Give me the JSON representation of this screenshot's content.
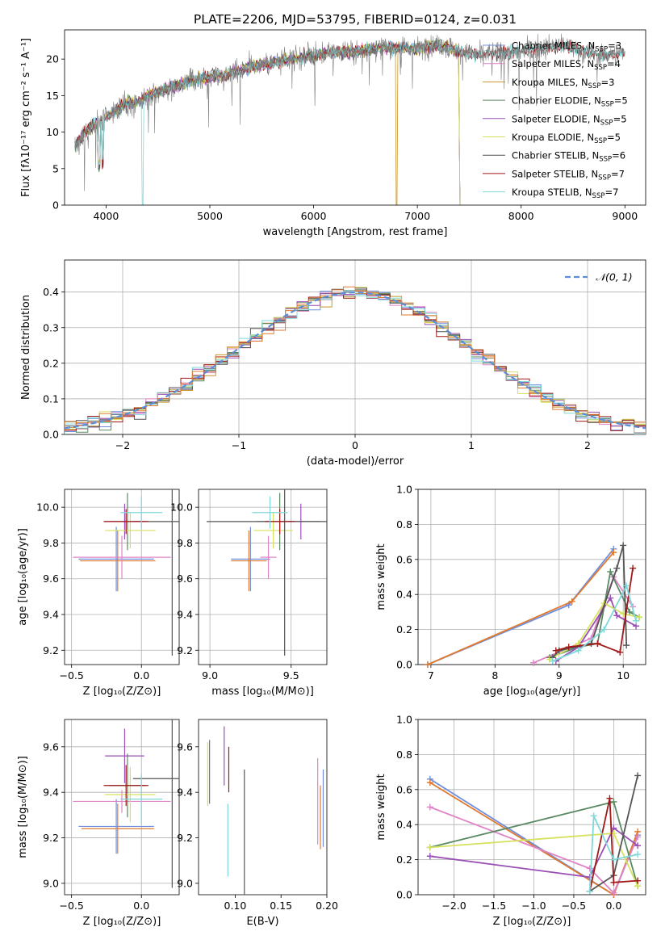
{
  "figure_title": "PLATE=2206, MJD=53795, FIBERID=0124, z=0.031",
  "colors": [
    "#6f8fde",
    "#e07a2f",
    "#2f9a2f",
    "#d64a4a",
    "#9a5fcf",
    "#8c5a4a",
    "#e084c7",
    "#7f7f7f",
    "#c9d84a",
    "#55c8d8"
  ],
  "chart_data": [
    {
      "id": "spectrum",
      "type": "line",
      "xlabel": "wavelength [Angstrom, rest frame]",
      "ylabel": "Flux [fλ10⁻¹⁷ erg cm⁻² s⁻¹ A⁻¹]",
      "xlim": [
        3600,
        9200
      ],
      "ylim": [
        0,
        24
      ],
      "xticks": [
        4000,
        5000,
        6000,
        7000,
        8000,
        9000
      ],
      "yticks": [
        0,
        5,
        10,
        15,
        20
      ],
      "grid": false,
      "legend_position": "top-right",
      "observed": {
        "color": "#7f7f7f",
        "x": [
          3700,
          3800,
          3900,
          4000,
          4100,
          4200,
          4300,
          4400,
          4600,
          4800,
          5000,
          5200,
          5400,
          5600,
          5800,
          6000,
          6200,
          6400,
          6600,
          6800,
          7000,
          7200,
          7400,
          7600,
          7800,
          8000,
          8200,
          8400,
          8600,
          8800,
          9000
        ],
        "y": [
          8,
          10,
          11,
          12,
          13,
          14,
          14,
          15,
          16,
          17,
          17.5,
          18,
          19,
          19.5,
          20,
          20.5,
          21,
          21,
          21.5,
          21.5,
          21.5,
          22,
          21,
          20.5,
          21,
          21,
          21.5,
          22,
          21,
          20.5,
          21
        ]
      },
      "series": [
        {
          "name": "Chabrier MILES, N$_{SSP}$=3",
          "label": "Chabrier MILES, N",
          "ssp": "=3",
          "color": "#6f8fde",
          "xmax": 7400,
          "dip": null
        },
        {
          "name": "Salpeter MILES, N$_{SSP}$=4",
          "label": "Salpeter MILES, N",
          "ssp": "=4",
          "color": "#e084c7",
          "xmax": 7400,
          "dip": null
        },
        {
          "name": "Kroupa MILES, N$_{SSP}$=3",
          "label": "Kroupa MILES, N",
          "ssp": "=3",
          "color": "#c8942a",
          "xmax": 7400,
          "dip": 6800
        },
        {
          "name": "Chabrier ELODIE, N$_{SSP}$=5",
          "label": "Chabrier ELODIE, N",
          "ssp": "=5",
          "color": "#5a8a64",
          "xmax": 7400,
          "dip": null
        },
        {
          "name": "Salpeter ELODIE, N$_{SSP}$=5",
          "label": "Salpeter ELODIE, N",
          "ssp": "=5",
          "color": "#9a4fb5",
          "xmax": 7400,
          "dip": null
        },
        {
          "name": "Kroupa ELODIE, N$_{SSP}$=5",
          "label": "Kroupa ELODIE, N",
          "ssp": "=5",
          "color": "#d6e15e",
          "xmax": 7400,
          "dip": null
        },
        {
          "name": "Chabrier STELIB, N$_{SSP}$=6",
          "label": "Chabrier STELIB, N",
          "ssp": "=6",
          "color": "#555555",
          "xmax": 9000,
          "dip": null
        },
        {
          "name": "Salpeter STELIB, N$_{SSP}$=7",
          "label": "Salpeter STELIB, N",
          "ssp": "=7",
          "color": "#a01818",
          "xmax": 9000,
          "dip": null
        },
        {
          "name": "Kroupa STELIB, N$_{SSP}$=7",
          "label": "Kroupa STELIB, N",
          "ssp": "=7",
          "color": "#7fd8d8",
          "xmax": 9000,
          "dip": 4350
        }
      ],
      "legend_subscript": "SSP"
    },
    {
      "id": "residuals",
      "type": "histogram",
      "xlabel": "(data-model)/error",
      "ylabel": "Normed distribution",
      "xlim": [
        -2.5,
        2.5
      ],
      "ylim": [
        0,
        0.49
      ],
      "xticks": [
        -2,
        -1,
        0,
        1,
        2
      ],
      "xticklabels": [
        "−2",
        "−1",
        "0",
        "1",
        "2"
      ],
      "yticks": [
        0.0,
        0.1,
        0.2,
        0.3,
        0.4
      ],
      "grid": true,
      "legend_position": "top-right",
      "reference_label": "𝒩(0, 1)",
      "reference_color": "#5b8ed6",
      "bin_width": 0.1,
      "hist_colors": [
        "#6f8fde",
        "#e084c7",
        "#c8942a",
        "#5a8a64",
        "#9a4fb5",
        "#d6e15e",
        "#555555",
        "#a01818",
        "#7fd8d8",
        "#e07a2f"
      ]
    },
    {
      "id": "age_vs_Z",
      "type": "errorbar",
      "xlabel": "Z [log₁₀(Z/Z⊙)]",
      "ylabel": "age  [log₁₀(age/yr)]",
      "xlim": [
        -0.55,
        0.27
      ],
      "ylim": [
        9.12,
        10.1
      ],
      "xticks": [
        -0.5,
        0.0
      ],
      "yticks": [
        9.2,
        9.4,
        9.6,
        9.8,
        10.0
      ],
      "grid": true,
      "points": [
        {
          "color": "#6f8fde",
          "x": -0.18,
          "xerr": 0.27,
          "y": 9.71,
          "yerr": 0.18
        },
        {
          "color": "#e07a2f",
          "x": -0.17,
          "xerr": 0.27,
          "y": 9.7,
          "yerr": 0.17
        },
        {
          "color": "#e084c7",
          "x": -0.14,
          "xerr": 0.35,
          "y": 9.72,
          "yerr": 0.12
        },
        {
          "color": "#5a8a64",
          "x": -0.1,
          "xerr": 0.12,
          "y": 9.92,
          "yerr": 0.16
        },
        {
          "color": "#9a4fb5",
          "x": -0.12,
          "xerr": 0.14,
          "y": 9.92,
          "yerr": 0.1
        },
        {
          "color": "#d6e15e",
          "x": -0.08,
          "xerr": 0.18,
          "y": 9.87,
          "yerr": 0.1
        },
        {
          "color": "#555555",
          "x": 0.22,
          "xerr": 0.28,
          "y": 9.92,
          "yerr": 0.75
        },
        {
          "color": "#a01818",
          "x": -0.11,
          "xerr": 0.16,
          "y": 9.92,
          "yerr": 0.07
        },
        {
          "color": "#7fd8d8",
          "x": 0.0,
          "xerr": 0.15,
          "y": 9.97,
          "yerr": 0.09
        }
      ]
    },
    {
      "id": "age_vs_mass",
      "type": "errorbar",
      "xlabel": "mass [log₁₀(M/M⊙)]",
      "ylabel": "",
      "xlim": [
        8.93,
        9.72
      ],
      "ylim": [
        9.12,
        10.1
      ],
      "xticks": [
        9.0,
        9.5
      ],
      "yticks": [
        9.2,
        9.4,
        9.6,
        9.8,
        10.0
      ],
      "grid": true,
      "points": [
        {
          "color": "#6f8fde",
          "x": 9.25,
          "xerr": 0.12,
          "y": 9.71,
          "yerr": 0.18
        },
        {
          "color": "#e07a2f",
          "x": 9.24,
          "xerr": 0.11,
          "y": 9.7,
          "yerr": 0.17
        },
        {
          "color": "#e084c7",
          "x": 9.36,
          "xerr": 0.05,
          "y": 9.72,
          "yerr": 0.12
        },
        {
          "color": "#5a8a64",
          "x": 9.43,
          "xerr": 0.14,
          "y": 9.92,
          "yerr": 0.16
        },
        {
          "color": "#9a4fb5",
          "x": 9.56,
          "xerr": 0.12,
          "y": 9.92,
          "yerr": 0.1
        },
        {
          "color": "#d6e15e",
          "x": 9.39,
          "xerr": 0.12,
          "y": 9.87,
          "yerr": 0.1
        },
        {
          "color": "#555555",
          "x": 9.46,
          "xerr": 0.48,
          "y": 9.92,
          "yerr": 0.75
        },
        {
          "color": "#a01818",
          "x": 9.43,
          "xerr": 0.09,
          "y": 9.92,
          "yerr": 0.07
        },
        {
          "color": "#7fd8d8",
          "x": 9.37,
          "xerr": 0.11,
          "y": 9.97,
          "yerr": 0.09
        }
      ]
    },
    {
      "id": "weight_vs_age",
      "type": "line",
      "xlabel": "age  [log₁₀(age/yr)]",
      "ylabel": "mass weight",
      "xlim": [
        6.8,
        10.35
      ],
      "ylim": [
        0,
        1
      ],
      "xticks": [
        7,
        8,
        9,
        10
      ],
      "yticks": [
        0.0,
        0.2,
        0.4,
        0.6,
        0.8,
        1.0
      ],
      "grid": true,
      "series": [
        {
          "color": "#6f8fde",
          "x": [
            6.95,
            9.15,
            9.85
          ],
          "y": [
            0.0,
            0.34,
            0.66
          ]
        },
        {
          "color": "#e07a2f",
          "x": [
            6.95,
            9.2,
            9.85
          ],
          "y": [
            0.0,
            0.36,
            0.64
          ]
        },
        {
          "color": "#e084c7",
          "x": [
            8.6,
            9.5,
            9.85,
            10.15
          ],
          "y": [
            0.01,
            0.15,
            0.5,
            0.33
          ]
        },
        {
          "color": "#5a8a64",
          "x": [
            8.85,
            9.3,
            9.6,
            9.8,
            10.1,
            10.25
          ],
          "y": [
            0.04,
            0.1,
            0.12,
            0.53,
            0.3,
            0.27
          ]
        },
        {
          "color": "#9a4fb5",
          "x": [
            8.95,
            9.3,
            9.8,
            9.9,
            10.2
          ],
          "y": [
            0.02,
            0.1,
            0.38,
            0.28,
            0.22
          ]
        },
        {
          "color": "#d6e15e",
          "x": [
            8.85,
            9.3,
            9.7,
            10.0,
            10.25
          ],
          "y": [
            0.03,
            0.12,
            0.35,
            0.29,
            0.27
          ]
        },
        {
          "color": "#555555",
          "x": [
            8.9,
            9.0,
            9.5,
            9.9,
            10.0,
            10.05
          ],
          "y": [
            0.04,
            0.08,
            0.12,
            0.55,
            0.68,
            0.11
          ]
        },
        {
          "color": "#a01818",
          "x": [
            8.95,
            9.15,
            9.6,
            9.95,
            10.15
          ],
          "y": [
            0.08,
            0.1,
            0.12,
            0.07,
            0.55
          ]
        },
        {
          "color": "#7fd8d8",
          "x": [
            8.9,
            9.3,
            9.7,
            10.05,
            10.2
          ],
          "y": [
            0.02,
            0.08,
            0.2,
            0.45,
            0.25
          ]
        }
      ]
    },
    {
      "id": "mass_vs_Z",
      "type": "errorbar",
      "xlabel": "Z [log₁₀(Z/Z⊙)]",
      "ylabel": "mass [log₁₀(M/M⊙)]",
      "xlim": [
        -0.55,
        0.27
      ],
      "ylim": [
        8.95,
        9.72
      ],
      "xticks": [
        -0.5,
        0.0
      ],
      "yticks": [
        9.0,
        9.2,
        9.4,
        9.6
      ],
      "grid": true,
      "points": [
        {
          "color": "#6f8fde",
          "x": -0.18,
          "xerr": 0.27,
          "y": 9.25,
          "yerr": 0.12
        },
        {
          "color": "#e07a2f",
          "x": -0.17,
          "xerr": 0.26,
          "y": 9.24,
          "yerr": 0.11
        },
        {
          "color": "#e084c7",
          "x": -0.14,
          "xerr": 0.35,
          "y": 9.36,
          "yerr": 0.05
        },
        {
          "color": "#5a8a64",
          "x": -0.1,
          "xerr": 0.13,
          "y": 9.43,
          "yerr": 0.14
        },
        {
          "color": "#9a4fb5",
          "x": -0.12,
          "xerr": 0.14,
          "y": 9.56,
          "yerr": 0.12
        },
        {
          "color": "#d6e15e",
          "x": -0.08,
          "xerr": 0.18,
          "y": 9.39,
          "yerr": 0.12
        },
        {
          "color": "#555555",
          "x": 0.22,
          "xerr": 0.28,
          "y": 9.46,
          "yerr": 0.48
        },
        {
          "color": "#a01818",
          "x": -0.11,
          "xerr": 0.16,
          "y": 9.43,
          "yerr": 0.09
        },
        {
          "color": "#7fd8d8",
          "x": 0.0,
          "xerr": 0.15,
          "y": 9.37,
          "yerr": 0.11
        }
      ]
    },
    {
      "id": "mass_vs_ebv",
      "type": "errorbar",
      "xlabel": "E(B-V)",
      "ylabel": "",
      "xlim": [
        0.06,
        0.2
      ],
      "ylim": [
        8.95,
        9.72
      ],
      "xticks": [
        0.1,
        0.15,
        0.2
      ],
      "xticklabels": [
        "0.10",
        "0.15",
        "0.20"
      ],
      "yticks": [
        9.0,
        9.2,
        9.4,
        9.6
      ],
      "grid": false,
      "points": [
        {
          "color": "#6f8fde",
          "x": 0.196,
          "xerr": 0,
          "y": 9.33,
          "yerr": 0.17
        },
        {
          "color": "#e07a2f",
          "x": 0.193,
          "xerr": 0,
          "y": 9.29,
          "yerr": 0.14
        },
        {
          "color": "#e084c7",
          "x": 0.19,
          "xerr": 0,
          "y": 9.36,
          "yerr": 0.19
        },
        {
          "color": "#5a8a64",
          "x": 0.072,
          "xerr": 0,
          "y": 9.49,
          "yerr": 0.14
        },
        {
          "color": "#9a4fb5",
          "x": 0.088,
          "xerr": 0,
          "y": 9.56,
          "yerr": 0.13
        },
        {
          "color": "#d6e15e",
          "x": 0.07,
          "xerr": 0,
          "y": 9.48,
          "yerr": 0.14
        },
        {
          "color": "#555555",
          "x": 0.11,
          "xerr": 0,
          "y": 9.17,
          "yerr": 0.33
        },
        {
          "color": "#a01818",
          "x": 0.093,
          "xerr": 0,
          "y": 9.5,
          "yerr": 0.1
        },
        {
          "color": "#7fd8d8",
          "x": 0.092,
          "xerr": 0,
          "y": 9.19,
          "yerr": 0.16
        }
      ]
    },
    {
      "id": "weight_vs_Z",
      "type": "line",
      "xlabel": "Z [log₁₀(Z/Z⊙)]",
      "ylabel": "mass weight",
      "xlim": [
        -2.45,
        0.4
      ],
      "ylim": [
        0,
        1
      ],
      "xticks": [
        -2.0,
        -1.5,
        -1.0,
        -0.5,
        0.0
      ],
      "xticklabels": [
        "−2.0",
        "−1.5",
        "−1.0",
        "−0.5",
        "0.0"
      ],
      "yticks": [
        0.0,
        0.2,
        0.4,
        0.6,
        0.8,
        1.0
      ],
      "grid": true,
      "series": [
        {
          "color": "#6f8fde",
          "x": [
            -2.3,
            0.0,
            0.3
          ],
          "y": [
            0.66,
            0.0,
            0.34
          ]
        },
        {
          "color": "#e07a2f",
          "x": [
            -2.3,
            0.0,
            0.3
          ],
          "y": [
            0.64,
            0.0,
            0.36
          ]
        },
        {
          "color": "#e084c7",
          "x": [
            -2.3,
            -0.3,
            0.0,
            0.3
          ],
          "y": [
            0.5,
            0.15,
            0.01,
            0.33
          ]
        },
        {
          "color": "#5a8a64",
          "x": [
            -2.3,
            0.0,
            0.3
          ],
          "y": [
            0.27,
            0.53,
            0.05
          ]
        },
        {
          "color": "#9a4fb5",
          "x": [
            -2.3,
            -0.3,
            0.0,
            0.3
          ],
          "y": [
            0.22,
            0.1,
            0.38,
            0.28
          ]
        },
        {
          "color": "#d6e15e",
          "x": [
            -2.3,
            0.0,
            0.3
          ],
          "y": [
            0.27,
            0.35,
            0.05
          ]
        },
        {
          "color": "#555555",
          "x": [
            -0.3,
            0.0,
            0.3
          ],
          "y": [
            0.02,
            0.11,
            0.68
          ]
        },
        {
          "color": "#a01818",
          "x": [
            -0.3,
            -0.05,
            0.0,
            0.3
          ],
          "y": [
            0.02,
            0.55,
            0.07,
            0.08
          ]
        },
        {
          "color": "#7fd8d8",
          "x": [
            -0.3,
            -0.25,
            0.0,
            0.3
          ],
          "y": [
            0.02,
            0.45,
            0.2,
            0.23
          ]
        }
      ]
    }
  ]
}
